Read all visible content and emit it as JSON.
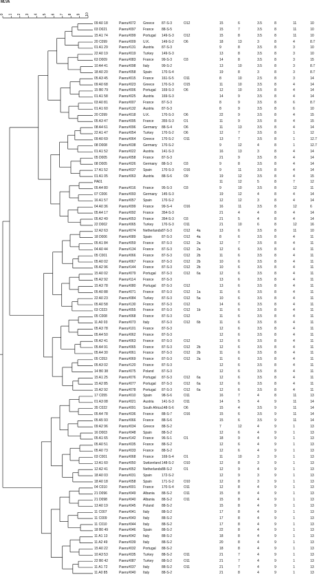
{
  "header_label": "MLVA",
  "scale_ticks": [
    "0",
    "1",
    "2",
    "3",
    "4",
    "5",
    "6",
    "7",
    "8",
    "9",
    "10"
  ],
  "rows": [
    [
      "09 A0 18",
      "Paeru#072",
      "Greece",
      "87-S-3",
      "O12",
      "",
      "15",
      "6",
      "3.5",
      "8",
      "11",
      "10"
    ],
    [
      "03 D021",
      "Paeru#097",
      "France",
      "88-S-5",
      "",
      "",
      "15",
      "7",
      "3.5",
      "8",
      "11",
      "10"
    ],
    [
      "15 A1 74",
      "Paeru#099",
      "Portugal",
      "149-S-3",
      "O12",
      "",
      "15",
      "8",
      "3.5",
      "8",
      "11",
      "10"
    ],
    [
      "20 C099",
      "Paeru#009",
      "U.K.",
      "149-S-2",
      "O6",
      "",
      "18",
      "13",
      "3",
      "8",
      "4",
      "8.7"
    ],
    [
      "01 A1 29",
      "Paeru#131",
      "Austria",
      "87-S-3",
      "",
      "",
      "9",
      "8",
      "3.5",
      "8",
      "3",
      "10"
    ],
    [
      "22 A0 19",
      "Paeru#019",
      "Turkey",
      "149-S-3",
      "",
      "",
      "13",
      "8",
      "3.5",
      "8",
      "3",
      "10"
    ],
    [
      "63 D009",
      "Paeru#083",
      "France",
      "99-S-3",
      "O3",
      "",
      "14",
      "8",
      "3.5",
      "8",
      "3",
      "15"
    ],
    [
      "10 A4 41",
      "Paeru#098",
      "Italy",
      "99-S-2",
      "",
      "",
      "13",
      "10",
      "3.5",
      "8",
      "3",
      "8.7"
    ],
    [
      "18 A0 20",
      "Paeru#058",
      "Spain",
      "170-S-4",
      "",
      "",
      "19",
      "8",
      "3",
      "8",
      "3",
      "8.7"
    ],
    [
      "05 A3 45",
      "Paeru#015",
      "France",
      "161-S-5",
      "O11",
      "",
      "8",
      "10",
      "2.5",
      "8",
      "3",
      "14"
    ],
    [
      "09 A0 68",
      "Paeru#023",
      "Greece",
      "170-S-3",
      "O15",
      "",
      "11",
      "10",
      "3.5",
      "8",
      "4",
      "14"
    ],
    [
      "15 B0 79",
      "Paeru#006",
      "Portugal",
      "169-S-3",
      "O6",
      "",
      "12",
      "10",
      "3.5",
      "8",
      "4",
      "14"
    ],
    [
      "01 A1 58",
      "Paeru#025",
      "Austria",
      "169-S-3",
      "",
      "",
      "14",
      "9",
      "3.5",
      "8",
      "4",
      "14"
    ],
    [
      "03 A0 81",
      "Paeru#007",
      "France",
      "87-S-3",
      "",
      "",
      "8",
      "9",
      "3.5",
      "8",
      "6",
      "8.7"
    ],
    [
      "01 A1 60",
      "Paeru#132",
      "Austria",
      "87-S-3",
      "",
      "",
      "8",
      "9",
      "3.5",
      "8",
      "6",
      "10"
    ],
    [
      "20 C099",
      "Paeru#018",
      "U.K.",
      "170-S-3",
      "O6",
      "",
      "22",
      "9",
      "3.5",
      "8",
      "4",
      "15"
    ],
    [
      "05 A3 47",
      "Paeru#095",
      "France",
      "355-S-3",
      "O1",
      "",
      "11",
      "9",
      "3.5",
      "8",
      "4",
      "15"
    ],
    [
      "08 A4 61",
      "Paeru#096",
      "Germany",
      "88-S-4",
      "O6",
      "",
      "11",
      "13",
      "3.5",
      "8",
      "4",
      "14"
    ],
    [
      "22 A1 47",
      "Paeru#054",
      "Turkey",
      "170-S-2",
      "O6",
      "",
      "12",
      "7",
      "3.5",
      "8",
      "1",
      "12"
    ],
    [
      "09 A0 69",
      "Paeru#064",
      "Greece",
      "170-S-2",
      "O11",
      "",
      "13",
      "7",
      "3.5",
      "8",
      "1",
      "12.7"
    ],
    [
      "08 D008",
      "Paeru#038",
      "Germany",
      "170-S-2",
      "",
      "",
      "9",
      "12",
      "4",
      "8",
      "1",
      "12.7"
    ],
    [
      "01 A1 52",
      "Paeru#022",
      "Austria",
      "141-S-3",
      "",
      "",
      "16",
      "13",
      "3",
      "8",
      "4",
      "14"
    ],
    [
      "05 D005",
      "Paeru#058",
      "France",
      "87-S-3",
      "",
      "",
      "21",
      "9",
      "3.5",
      "8",
      "4",
      "14"
    ],
    [
      "08 D005",
      "Paeru#026",
      "Germany",
      "88-S-3",
      "O3",
      "",
      "9",
      "8",
      "3.5",
      "8",
      "4",
      "14"
    ],
    [
      "17 A1 52",
      "Paeru#037",
      "Spain",
      "170-S-3",
      "O16",
      "",
      "9",
      "11",
      "3.5",
      "8",
      "4",
      "14"
    ],
    [
      "01 A1 05",
      "Paeru#063",
      "Austria",
      "88-S-6",
      "O9",
      "",
      "19",
      "12",
      "3.5",
      "8",
      "4",
      "15"
    ],
    [
      "PA01",
      "",
      "",
      "",
      "",
      "",
      "11",
      "12",
      "5",
      "8",
      "7",
      "12"
    ],
    [
      "05 A4 80",
      "Paeru#016",
      "France",
      "95-S-3",
      "O3",
      "",
      "9",
      "10",
      "3.5",
      "8",
      "12",
      "11"
    ],
    [
      "07 C006",
      "Paeru#093",
      "Germany",
      "145-S-3",
      "",
      "",
      "19",
      "12",
      "4",
      "8",
      "4",
      "14"
    ],
    [
      "16 A1 57",
      "Paeru#057",
      "Spain",
      "170-S-2",
      "",
      "",
      "12",
      "12",
      "3",
      "8",
      "4",
      "14"
    ],
    [
      "04 A0 36",
      "Paeru#099",
      "France",
      "99-S-4",
      "O16",
      "",
      "16",
      "11",
      "3.5",
      "8",
      "12",
      "6"
    ],
    [
      "05 A4 17",
      "Paeru#092",
      "France",
      "354-S-3",
      "",
      "",
      "21",
      "4",
      "4",
      "8",
      "4",
      "14"
    ],
    [
      "05 A2 49",
      "Paeru#053",
      "France",
      "354-S-3",
      "O3",
      "",
      "21",
      "5",
      "4",
      "8",
      "4",
      "14"
    ],
    [
      "22 D002",
      "Paeru#065",
      "Turkey",
      "170-S-3",
      "O11",
      "",
      "21",
      "10",
      "6",
      "8",
      "12",
      "16"
    ],
    [
      "12 A2 63",
      "Paeru#074",
      "Netherlands",
      "87-S-3",
      "O12",
      "4a",
      "13",
      "6",
      "3.5",
      "8",
      "11",
      "10"
    ],
    [
      "18 D006",
      "Paeru#089",
      "Spain",
      "87-S-3",
      "O12",
      "4a",
      "8",
      "6",
      "3.5",
      "8",
      "4",
      "11"
    ],
    [
      "05 A1 84",
      "Paeru#059",
      "France",
      "87-S-3",
      "O12",
      "2a",
      "12",
      "7",
      "3.5",
      "8",
      "4",
      "11"
    ],
    [
      "04 A0 44",
      "Paeru#134",
      "France",
      "87-S-3",
      "O12",
      "2a",
      "12",
      "6",
      "3.5",
      "8",
      "4",
      "11"
    ],
    [
      "05 C001",
      "Paeru#066",
      "France",
      "87-S-3",
      "O12",
      "2b",
      "11",
      "6",
      "3.5",
      "8",
      "4",
      "11"
    ],
    [
      "05 A0 02",
      "Paeru#067",
      "France",
      "87-S-3",
      "O12",
      "2b",
      "10",
      "6",
      "3.5",
      "8",
      "4",
      "11"
    ],
    [
      "05 A2 96",
      "Paeru#144",
      "France",
      "87-S-3",
      "O12",
      "2b",
      "10",
      "6",
      "3.5",
      "8",
      "4",
      "11"
    ],
    [
      "15 A0 02",
      "Paeru#079",
      "Portugal",
      "87-S-3",
      "O12",
      "6a",
      "12",
      "6",
      "3.5",
      "8",
      "4",
      "11"
    ],
    [
      "05 A2 92",
      "Paeru#114",
      "France",
      "87-S-3",
      "",
      "",
      "13",
      "6",
      "3.5",
      "8",
      "4",
      "11"
    ],
    [
      "15 A3 78",
      "Paeru#080",
      "Portugal",
      "87-S-3",
      "O12",
      "",
      "13",
      "6",
      "3.5",
      "8",
      "4",
      "11"
    ],
    [
      "05 A0 88",
      "Paeru#071",
      "France",
      "87-S-3",
      "O12",
      "1a",
      "11",
      "6",
      "3.5",
      "8",
      "4",
      "11"
    ],
    [
      "22 A0 23",
      "Paeru#084",
      "Turkey",
      "87-S-3",
      "O12",
      "5a",
      "10",
      "6",
      "3.5",
      "8",
      "4",
      "11"
    ],
    [
      "05 A0 58",
      "Paeru#130",
      "France",
      "87-S-3",
      "O12",
      "",
      "14",
      "6",
      "3.5",
      "8",
      "4",
      "11"
    ],
    [
      "03 C023",
      "Paeru#055",
      "France",
      "87-S-3",
      "O12",
      "1b",
      "11",
      "6",
      "3.5",
      "8",
      "4",
      "11"
    ],
    [
      "05 C008",
      "Paeru#068",
      "France",
      "87-S-3",
      "O12",
      "",
      "11",
      "6",
      "3.5",
      "8",
      "4",
      "11"
    ],
    [
      "11 A0 03",
      "Paeru#073",
      "Italy",
      "87-S-3",
      "O12",
      "6b",
      "11",
      "6",
      "3.5",
      "8",
      "4",
      "11"
    ],
    [
      "05 A3 78",
      "Paeru#101",
      "France",
      "87-S-3",
      "",
      "",
      "12",
      "6",
      "3.5",
      "8",
      "4",
      "11"
    ],
    [
      "05 A4 50",
      "Paeru#062",
      "France",
      "87-S-3",
      "",
      "",
      "12",
      "6",
      "3.5",
      "8",
      "4",
      "11"
    ],
    [
      "05 A2 41",
      "Paeru#063",
      "France",
      "87-S-3",
      "O12",
      "",
      "12",
      "6",
      "3.5",
      "8",
      "4",
      "11"
    ],
    [
      "05 A4 91",
      "Paeru#065",
      "France",
      "87-S-3",
      "O12",
      "2b",
      "12",
      "6",
      "3.5",
      "8",
      "4",
      "11"
    ],
    [
      "05 A4 30",
      "Paeru#061",
      "France",
      "87-S-3",
      "O12",
      "2b",
      "11",
      "6",
      "3.5",
      "8",
      "4",
      "11"
    ],
    [
      "05 C053",
      "Paeru#069",
      "France",
      "87-S-3",
      "O12",
      "2a",
      "11",
      "6",
      "3.5",
      "8",
      "4",
      "11"
    ],
    [
      "05 A3 02",
      "Paeru#120",
      "France",
      "87-S-3",
      "",
      "",
      "12",
      "6",
      "3.5",
      "8",
      "4",
      "11"
    ],
    [
      "14 B0 38",
      "Paeru#075",
      "Poland",
      "87-S-3",
      "",
      "",
      "12",
      "6",
      "3.5",
      "8",
      "4",
      "11"
    ],
    [
      "15 A1 25",
      "Paeru#076",
      "Portugal",
      "87-S-3",
      "O12",
      "6a",
      "12",
      "6",
      "3.5",
      "8",
      "4",
      "11"
    ],
    [
      "15 A2 85",
      "Paeru#077",
      "Portugal",
      "87-S-3",
      "O12",
      "6a",
      "12",
      "6",
      "3.5",
      "8",
      "4",
      "11"
    ],
    [
      "15 A2 92",
      "Paeru#078",
      "Portugal",
      "87-S-3",
      "O12",
      "6a",
      "12",
      "6",
      "3.5",
      "8",
      "4",
      "11"
    ],
    [
      "17 C055",
      "Paeru#010",
      "Spain",
      "98-S-6",
      "O11",
      "",
      "16",
      "7",
      "4",
      "8",
      "11",
      "13"
    ],
    [
      "01 A3 08",
      "Paeru#021",
      "Austria",
      "141-S-3",
      "O11",
      "",
      "14",
      "5",
      "4",
      "9",
      "11",
      "14"
    ],
    [
      "35 C022",
      "Paeru#091",
      "South Africa",
      "148-S-6",
      "O6",
      "",
      "15",
      "4",
      "3.5",
      "9",
      "11",
      "14"
    ],
    [
      "05 A4 78",
      "Paeru#036",
      "France",
      "88-S-7",
      "O16",
      "",
      "15",
      "6",
      "3.5",
      "9",
      "11",
      "14"
    ],
    [
      "05 A5 93",
      "Paeru#066",
      "France",
      "88-S-6",
      "",
      "",
      "15",
      "6",
      "3.5",
      "9",
      "11",
      "14"
    ],
    [
      "09 A2 96",
      "Paeru#034",
      "Greece",
      "88-S-2",
      "",
      "",
      "7",
      "12",
      "4",
      "9",
      "1",
      "13"
    ],
    [
      "16 D003",
      "Paeru#048",
      "Spain",
      "88-S-2",
      "",
      "",
      "12",
      "6",
      "4",
      "9",
      "1",
      "13"
    ],
    [
      "05 A1 65",
      "Paeru#142",
      "France",
      "96-S-1",
      "O1",
      "",
      "18",
      "9",
      "4",
      "9",
      "1",
      "13"
    ],
    [
      "05 A0 51",
      "Paeru#035",
      "France",
      "88-S-2",
      "",
      "",
      "12",
      "6",
      "4",
      "9",
      "1",
      "13"
    ],
    [
      "05 A0 73",
      "Paeru#033",
      "France",
      "88-S-2",
      "",
      "",
      "12",
      "6",
      "4",
      "9",
      "1",
      "13"
    ],
    [
      "03 C001",
      "Paeru#068",
      "France",
      "169-S-4",
      "O1",
      "",
      "11",
      "10",
      "3",
      "9",
      "1",
      "13"
    ],
    [
      "13 A1 60",
      "Paeru#050",
      "Switzerland",
      "148-S-2",
      "O10",
      "",
      "12",
      "8",
      "3",
      "9",
      "1",
      "13"
    ],
    [
      "12 A2 41",
      "Paeru#052",
      "Netherlands",
      "88-S-2",
      "O1",
      "",
      "12",
      "9",
      "4",
      "9",
      "1",
      "13"
    ],
    [
      "18 A0 03",
      "Paeru#031",
      "Spain",
      "172-S-2",
      "",
      "",
      "12",
      "9",
      "3",
      "9",
      "1",
      "13"
    ],
    [
      "18 A0 18",
      "Paeru#058",
      "Spain",
      "171-S-2",
      "O10",
      "",
      "12",
      "8",
      "3",
      "9",
      "1",
      "13"
    ],
    [
      "04 C010",
      "Paeru#001",
      "France",
      "170-S-4",
      "O11",
      "",
      "12",
      "8",
      "4",
      "9",
      "1",
      "13"
    ],
    [
      "21 D096",
      "Paeru#049",
      "Albania",
      "88-S-2",
      "O11",
      "",
      "15",
      "8",
      "4",
      "9",
      "1",
      "13"
    ],
    [
      "21 D098",
      "Paeru#040",
      "Albania",
      "88-S-2",
      "O11",
      "",
      "15",
      "8",
      "4",
      "9",
      "1",
      "13"
    ],
    [
      "13 A0 19",
      "Paeru#045",
      "Poland",
      "88-S-2",
      "",
      "",
      "15",
      "8",
      "4",
      "9",
      "1",
      "13"
    ],
    [
      "11 C007",
      "Paeru#041",
      "Italy",
      "88-S-2",
      "",
      "",
      "17",
      "8",
      "4",
      "9",
      "1",
      "13"
    ],
    [
      "11 C009",
      "Paeru#043",
      "Italy",
      "88-S-2",
      "",
      "",
      "17",
      "8",
      "4",
      "9",
      "1",
      "13"
    ],
    [
      "11 C010",
      "Paeru#044",
      "Italy",
      "88-S-2",
      "",
      "",
      "17",
      "8",
      "4",
      "9",
      "1",
      "13"
    ],
    [
      "18 B0 49",
      "Paeru#046",
      "Spain",
      "88-S-2",
      "",
      "",
      "22",
      "8",
      "4",
      "9",
      "1",
      "13"
    ],
    [
      "11 A1 13",
      "Paeru#042",
      "Italy",
      "88-S-2",
      "",
      "",
      "18",
      "8",
      "4",
      "9",
      "1",
      "13"
    ],
    [
      "11 A2 49",
      "Paeru#039",
      "Italy",
      "88-S-2",
      "",
      "",
      "20",
      "8",
      "4",
      "9",
      "1",
      "13"
    ],
    [
      "15 A0 22",
      "Paeru#032",
      "Portugal",
      "88-S-2",
      "",
      "",
      "18",
      "8",
      "4",
      "9",
      "1",
      "13"
    ],
    [
      "10 A3 53",
      "Paeru#035",
      "Turkey",
      "88-S-2",
      "O11",
      "",
      "21",
      "7",
      "4",
      "9",
      "1",
      "13"
    ],
    [
      "22 B0 42",
      "Paeru#087",
      "Turkey",
      "88-S-2",
      "O11",
      "",
      "21",
      "7",
      "4",
      "9",
      "1",
      "13"
    ],
    [
      "11 A1 72",
      "Paeru#037",
      "Italy",
      "88-S-2",
      "O11",
      "",
      "21",
      "7",
      "4",
      "9",
      "1",
      "13"
    ],
    [
      "11 A0 85",
      "Paeru#040",
      "Italy",
      "88-S-2",
      "",
      "",
      "21",
      "8",
      "4",
      "9",
      "1",
      "13"
    ]
  ]
}
